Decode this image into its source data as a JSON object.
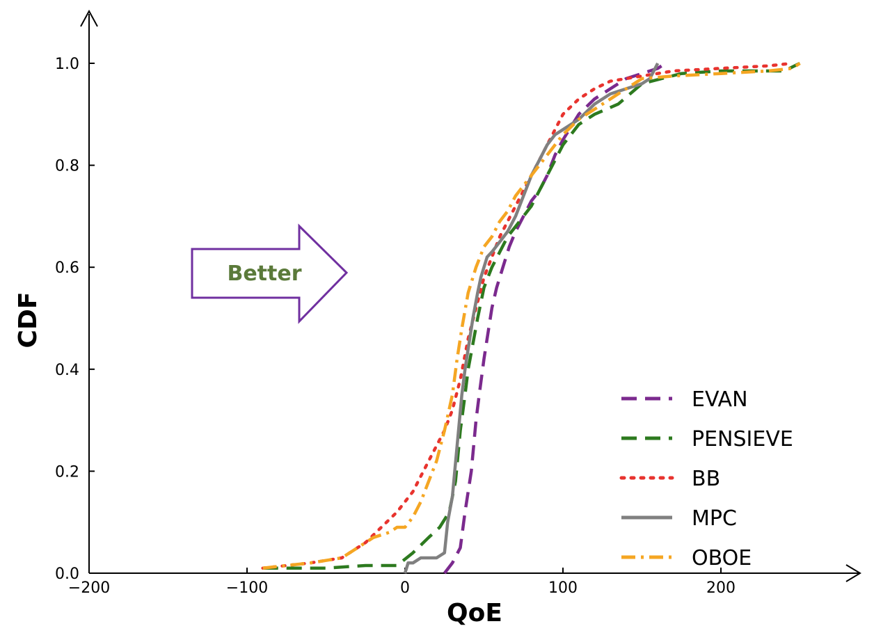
{
  "chart_data": {
    "type": "line",
    "title": "",
    "xlabel": "QoE",
    "ylabel": "CDF",
    "xlim": [
      -200,
      280
    ],
    "ylim": [
      0,
      1.08
    ],
    "x_ticks": [
      -200,
      -100,
      0,
      100,
      200
    ],
    "x_tick_labels": [
      "−200",
      "−100",
      "0",
      "100",
      "200"
    ],
    "y_ticks": [
      0.0,
      0.2,
      0.4,
      0.6,
      0.8,
      1.0
    ],
    "y_tick_labels": [
      "0.0",
      "0.2",
      "0.4",
      "0.6",
      "0.8",
      "1.0"
    ],
    "grid": false,
    "legend_position": "bottom-right",
    "annotation": {
      "text": "Better",
      "shape": "right-arrow",
      "color": "#7030a0",
      "text_color": "#5b7a3a"
    },
    "series": [
      {
        "name": "EVAN",
        "color": "#7b2a8e",
        "style": "dashed",
        "x": [
          25,
          30,
          35,
          38,
          42,
          45,
          47,
          50,
          53,
          55,
          58,
          62,
          66,
          70,
          75,
          80,
          85,
          90,
          95,
          100,
          110,
          120,
          130,
          140,
          150,
          160,
          165
        ],
        "y": [
          0.0,
          0.02,
          0.05,
          0.12,
          0.2,
          0.3,
          0.35,
          0.42,
          0.48,
          0.52,
          0.56,
          0.6,
          0.64,
          0.67,
          0.7,
          0.73,
          0.75,
          0.78,
          0.82,
          0.85,
          0.9,
          0.93,
          0.95,
          0.97,
          0.98,
          0.99,
          1.0
        ]
      },
      {
        "name": "PENSIEVE",
        "color": "#2d7a1f",
        "style": "dashed",
        "x": [
          -90,
          -50,
          -25,
          -5,
          5,
          15,
          22,
          28,
          32,
          35,
          38,
          40,
          43,
          46,
          50,
          55,
          60,
          65,
          70,
          80,
          90,
          100,
          110,
          120,
          135,
          150,
          175,
          200,
          240,
          250
        ],
        "y": [
          0.01,
          0.01,
          0.015,
          0.015,
          0.04,
          0.07,
          0.09,
          0.12,
          0.18,
          0.28,
          0.35,
          0.4,
          0.45,
          0.5,
          0.56,
          0.6,
          0.63,
          0.66,
          0.68,
          0.72,
          0.78,
          0.84,
          0.88,
          0.9,
          0.92,
          0.96,
          0.98,
          0.985,
          0.985,
          1.0
        ]
      },
      {
        "name": "BB",
        "color": "#e8332e",
        "style": "dotted",
        "x": [
          -90,
          -60,
          -40,
          -25,
          -15,
          -5,
          5,
          15,
          25,
          30,
          35,
          40,
          45,
          50,
          55,
          60,
          70,
          80,
          90,
          100,
          110,
          120,
          130,
          150,
          170,
          200,
          230,
          245
        ],
        "y": [
          0.01,
          0.02,
          0.03,
          0.06,
          0.09,
          0.12,
          0.16,
          0.22,
          0.28,
          0.32,
          0.38,
          0.46,
          0.52,
          0.58,
          0.62,
          0.66,
          0.72,
          0.78,
          0.84,
          0.9,
          0.93,
          0.95,
          0.965,
          0.975,
          0.985,
          0.99,
          0.995,
          1.0
        ]
      },
      {
        "name": "MPC",
        "color": "#808080",
        "style": "solid",
        "x": [
          0,
          2,
          5,
          10,
          15,
          20,
          25,
          27,
          30,
          33,
          36,
          38,
          40,
          43,
          46,
          48,
          50,
          52,
          55,
          60,
          65,
          70,
          75,
          80,
          85,
          90,
          95,
          100,
          110,
          120,
          130,
          140,
          150,
          155,
          160
        ],
        "y": [
          0.0,
          0.02,
          0.02,
          0.03,
          0.03,
          0.03,
          0.04,
          0.1,
          0.15,
          0.25,
          0.35,
          0.4,
          0.44,
          0.5,
          0.55,
          0.58,
          0.6,
          0.62,
          0.63,
          0.65,
          0.67,
          0.7,
          0.74,
          0.78,
          0.81,
          0.84,
          0.86,
          0.87,
          0.89,
          0.92,
          0.94,
          0.95,
          0.96,
          0.97,
          1.0
        ]
      },
      {
        "name": "OBOE",
        "color": "#f5a623",
        "style": "dashdot",
        "x": [
          -90,
          -60,
          -40,
          -30,
          -20,
          -10,
          -5,
          0,
          5,
          10,
          15,
          20,
          25,
          30,
          33,
          36,
          40,
          45,
          50,
          55,
          60,
          65,
          70,
          80,
          90,
          100,
          110,
          120,
          130,
          140,
          150,
          170,
          200,
          230,
          245,
          250
        ],
        "y": [
          0.01,
          0.02,
          0.03,
          0.05,
          0.07,
          0.08,
          0.09,
          0.09,
          0.11,
          0.14,
          0.18,
          0.22,
          0.28,
          0.35,
          0.42,
          0.48,
          0.55,
          0.6,
          0.64,
          0.66,
          0.69,
          0.71,
          0.74,
          0.78,
          0.82,
          0.86,
          0.89,
          0.91,
          0.93,
          0.95,
          0.97,
          0.975,
          0.98,
          0.985,
          0.99,
          1.0
        ]
      }
    ]
  }
}
